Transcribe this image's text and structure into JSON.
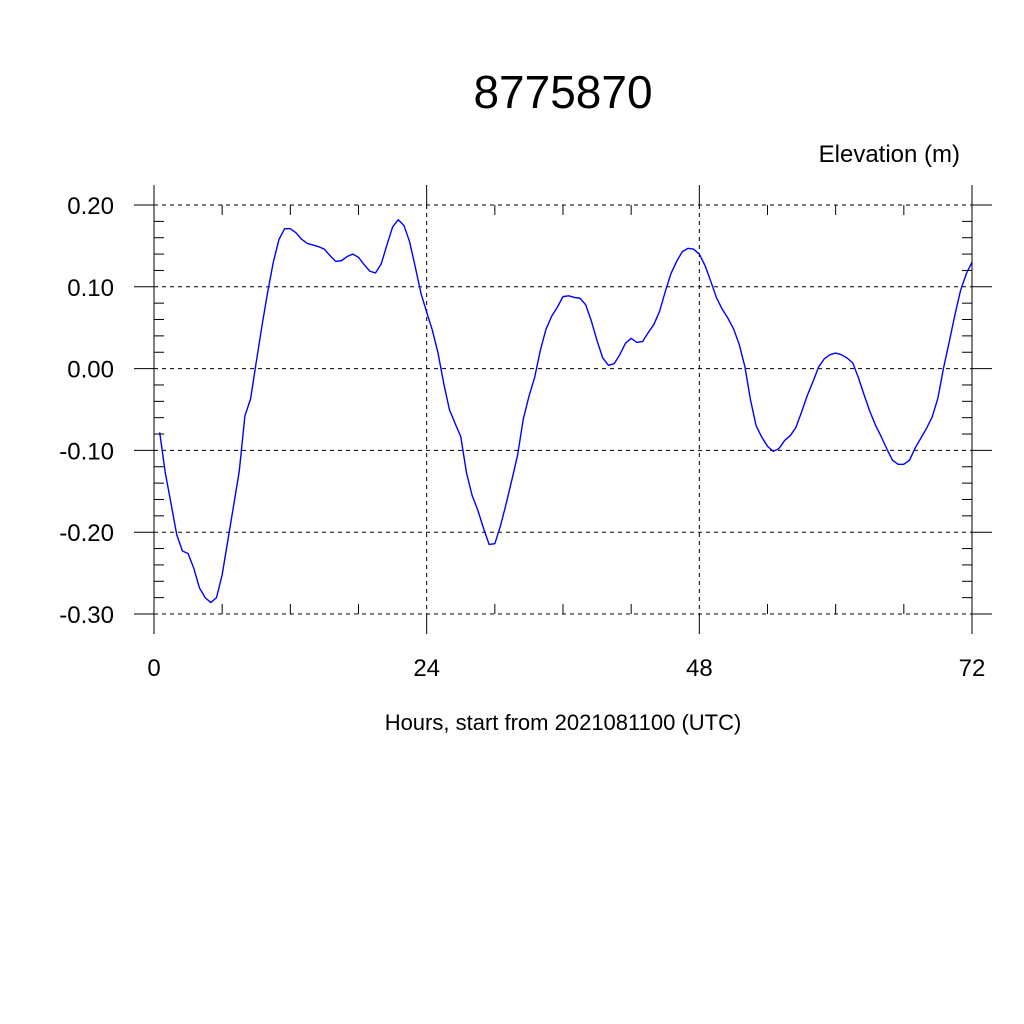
{
  "chart_data": {
    "type": "line",
    "title": "8775870",
    "ylabel": "Elevation (m)",
    "xlabel": "Hours, start from 2021081100 (UTC)",
    "xlim": [
      0,
      72
    ],
    "ylim": [
      -0.3,
      0.2
    ],
    "x_ticks": [
      0,
      24,
      48,
      72
    ],
    "x_tick_labels": [
      "0",
      "24",
      "48",
      "72"
    ],
    "y_ticks": [
      -0.3,
      -0.2,
      -0.1,
      0.0,
      0.1,
      0.2
    ],
    "y_tick_labels": [
      "-0.30",
      "-0.20",
      "-0.10",
      "0.00",
      "0.10",
      "0.20"
    ],
    "grid": "dashed at major ticks",
    "series_color": "#0000ff",
    "series": [
      {
        "x": [
          0.5,
          1.0,
          1.5,
          2.0,
          2.5,
          3.0,
          3.5,
          4.0,
          4.5,
          5.0,
          5.5,
          6.0,
          6.5,
          7.0,
          7.5,
          8.0,
          8.5,
          9.0,
          9.5,
          10.0,
          10.5,
          11.0,
          11.5,
          12.0,
          12.5,
          13.0,
          13.5,
          14.0,
          14.5,
          15.0,
          15.5,
          16.0,
          16.5,
          17.0,
          17.5,
          18.0,
          18.5,
          19.0,
          19.5,
          20.0,
          20.5,
          21.0,
          21.5,
          22.0,
          22.5,
          23.0,
          23.5,
          24.0,
          24.5,
          25.0,
          25.5,
          26.0,
          26.5,
          27.0,
          27.5,
          28.0,
          28.5,
          29.0,
          29.5,
          30.0,
          30.5,
          31.0,
          31.5,
          32.0,
          32.5,
          33.0,
          33.5,
          34.0,
          34.5,
          35.0,
          35.5,
          36.0,
          36.5,
          37.0,
          37.5,
          38.0,
          38.5,
          39.0,
          39.5,
          40.0,
          40.5,
          41.0,
          41.5,
          42.0,
          42.5,
          43.0,
          43.5,
          44.0,
          44.5,
          45.0,
          45.5,
          46.0,
          46.5,
          47.0,
          47.5,
          48.0,
          48.5,
          49.0,
          49.5,
          50.0,
          50.5,
          51.0,
          51.5,
          52.0,
          52.5,
          53.0,
          53.5,
          54.0,
          54.5,
          55.0,
          55.5,
          56.0,
          56.5,
          57.0,
          57.5,
          58.0,
          58.5,
          59.0,
          59.5,
          60.0,
          60.5,
          61.0,
          61.5,
          62.0,
          62.5,
          63.0,
          63.5,
          64.0,
          64.5,
          65.0,
          65.5,
          66.0,
          66.5,
          67.0,
          67.5,
          68.0,
          68.5,
          69.0,
          69.5,
          70.0,
          70.5,
          71.0,
          71.5,
          72.0
        ],
        "y": [
          -0.078,
          -0.128,
          -0.165,
          -0.203,
          -0.223,
          -0.226,
          -0.244,
          -0.268,
          -0.28,
          -0.286,
          -0.28,
          -0.252,
          -0.21,
          -0.168,
          -0.126,
          -0.058,
          -0.037,
          0.008,
          0.052,
          0.093,
          0.13,
          0.158,
          0.171,
          0.171,
          0.166,
          0.158,
          0.153,
          0.151,
          0.149,
          0.146,
          0.138,
          0.131,
          0.132,
          0.137,
          0.14,
          0.136,
          0.127,
          0.119,
          0.117,
          0.128,
          0.151,
          0.173,
          0.182,
          0.175,
          0.155,
          0.124,
          0.092,
          0.069,
          0.047,
          0.019,
          -0.018,
          -0.05,
          -0.067,
          -0.083,
          -0.127,
          -0.155,
          -0.173,
          -0.195,
          -0.215,
          -0.214,
          -0.192,
          -0.165,
          -0.136,
          -0.106,
          -0.062,
          -0.034,
          -0.011,
          0.022,
          0.048,
          0.064,
          0.075,
          0.088,
          0.089,
          0.087,
          0.086,
          0.078,
          0.058,
          0.034,
          0.013,
          0.004,
          0.006,
          0.017,
          0.031,
          0.037,
          0.032,
          0.033,
          0.044,
          0.054,
          0.07,
          0.094,
          0.116,
          0.131,
          0.143,
          0.147,
          0.146,
          0.14,
          0.126,
          0.107,
          0.087,
          0.073,
          0.062,
          0.049,
          0.03,
          0.003,
          -0.038,
          -0.07,
          -0.084,
          -0.095,
          -0.101,
          -0.098,
          -0.088,
          -0.082,
          -0.072,
          -0.053,
          -0.033,
          -0.016,
          0.002,
          0.012,
          0.017,
          0.019,
          0.017,
          0.013,
          0.007,
          -0.011,
          -0.032,
          -0.052,
          -0.069,
          -0.083,
          -0.098,
          -0.112,
          -0.117,
          -0.117,
          -0.112,
          -0.097,
          -0.085,
          -0.073,
          -0.059,
          -0.036,
          0.001,
          0.033,
          0.066,
          0.096,
          0.116,
          0.13
        ]
      }
    ]
  }
}
